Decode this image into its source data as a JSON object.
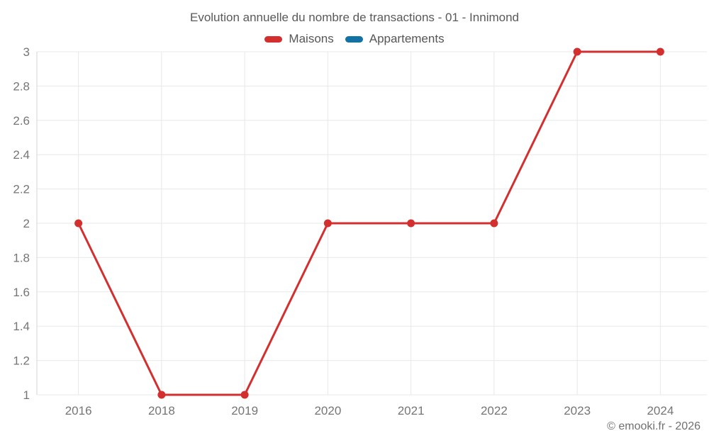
{
  "title": "Evolution annuelle du nombre de transactions - 01 - Innimond",
  "legend": {
    "items": [
      {
        "label": "Maisons",
        "color": "#d32f2f"
      },
      {
        "label": "Appartements",
        "color": "#1272a4"
      }
    ]
  },
  "attribution": "© emooki.fr - 2026",
  "chart_data": {
    "type": "line",
    "title": "Evolution annuelle du nombre de transactions - 01 - Innimond",
    "categories": [
      "2016",
      "2018",
      "2019",
      "2020",
      "2021",
      "2022",
      "2023",
      "2024"
    ],
    "series": [
      {
        "name": "Maisons",
        "color": "#d32f2f",
        "values": [
          2,
          1,
          1,
          2,
          2,
          2,
          3,
          3
        ]
      },
      {
        "name": "Appartements",
        "color": "#1272a4",
        "values": []
      }
    ],
    "xlabel": "",
    "ylabel": "",
    "ylim": [
      1,
      3
    ],
    "yticks": [
      1,
      1.2,
      1.4,
      1.6,
      1.8,
      2,
      2.2,
      2.4,
      2.6,
      2.8,
      3
    ],
    "grid": true,
    "legend_position": "top",
    "colors": {
      "grid_line": "#e8e8e8",
      "axis_line": "#d6d6d6",
      "tick_text": "#757575"
    }
  }
}
